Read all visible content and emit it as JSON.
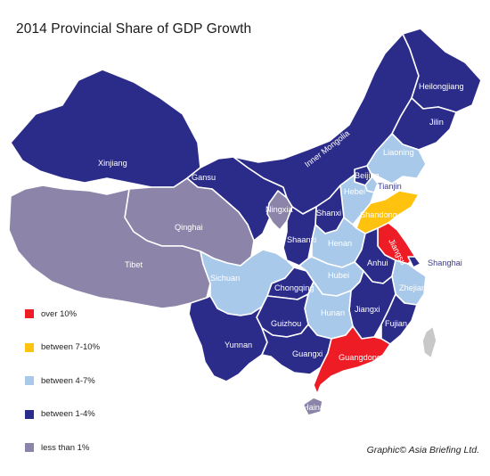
{
  "title": "2014 Provincial Share of GDP Growth",
  "credit": "Graphic© Asia Briefing Ltd.",
  "colors": {
    "over_10": "#ee1c25",
    "between_7_10": "#ffc20e",
    "between_4_7": "#a9c9ea",
    "between_1_4": "#2b2b8a",
    "less_1": "#8d84a9",
    "border": "#ffffff",
    "taiwan": "#c8c8c8"
  },
  "legend": [
    {
      "label": "over 10%",
      "color": "#ee1c25"
    },
    {
      "label": "between 7-10%",
      "color": "#ffc20e"
    },
    {
      "label": "between 4-7%",
      "color": "#a9c9ea"
    },
    {
      "label": "between 1-4%",
      "color": "#2b2b8a"
    },
    {
      "label": "less than 1%",
      "color": "#8d84a9"
    }
  ],
  "provinces": [
    {
      "name": "Heilongjiang",
      "category": "between 1-4%"
    },
    {
      "name": "Jilin",
      "category": "between 1-4%"
    },
    {
      "name": "Liaoning",
      "category": "between 4-7%"
    },
    {
      "name": "Inner Mongolia",
      "category": "between 1-4%"
    },
    {
      "name": "Xinjiang",
      "category": "between 1-4%"
    },
    {
      "name": "Gansu",
      "category": "between 1-4%"
    },
    {
      "name": "Beijing",
      "category": "between 1-4%"
    },
    {
      "name": "Tianjin",
      "category": "between 4-7%"
    },
    {
      "name": "Hebei",
      "category": "between 4-7%"
    },
    {
      "name": "Ningxia",
      "category": "less than 1%"
    },
    {
      "name": "Shanxi",
      "category": "between 1-4%"
    },
    {
      "name": "Shandong",
      "category": "between 7-10%"
    },
    {
      "name": "Qinghai",
      "category": "less than 1%"
    },
    {
      "name": "Shaanxi",
      "category": "between 1-4%"
    },
    {
      "name": "Henan",
      "category": "between 4-7%"
    },
    {
      "name": "Jiangsu",
      "category": "over 10%"
    },
    {
      "name": "Anhui",
      "category": "between 1-4%"
    },
    {
      "name": "Shanghai",
      "category": "between 1-4%"
    },
    {
      "name": "Tibet",
      "category": "less than 1%"
    },
    {
      "name": "Sichuan",
      "category": "between 4-7%"
    },
    {
      "name": "Hubei",
      "category": "between 4-7%"
    },
    {
      "name": "Chongqing",
      "category": "between 1-4%"
    },
    {
      "name": "Zhejiang",
      "category": "between 4-7%"
    },
    {
      "name": "Jiangxi",
      "category": "between 1-4%"
    },
    {
      "name": "Hunan",
      "category": "between 4-7%"
    },
    {
      "name": "Guizhou",
      "category": "between 1-4%"
    },
    {
      "name": "Fujian",
      "category": "between 1-4%"
    },
    {
      "name": "Yunnan",
      "category": "between 1-4%"
    },
    {
      "name": "Guangxi",
      "category": "between 1-4%"
    },
    {
      "name": "Guangdong",
      "category": "over 10%"
    },
    {
      "name": "Hainan",
      "category": "less than 1%"
    }
  ]
}
